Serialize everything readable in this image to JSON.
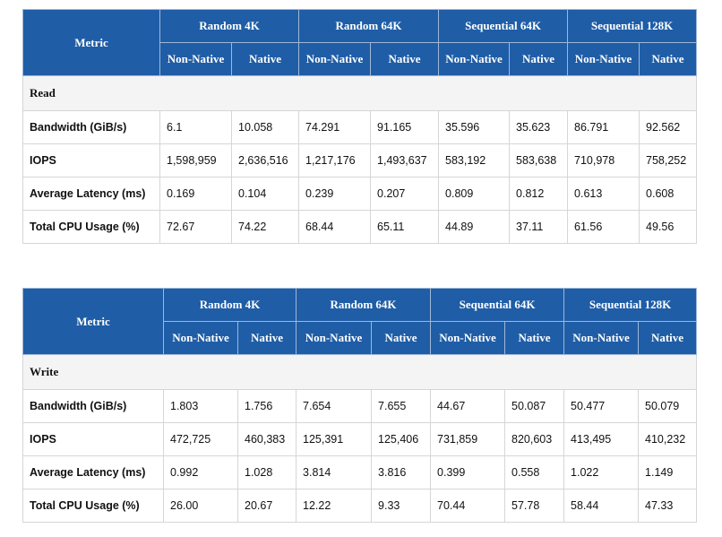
{
  "tables": [
    {
      "header": {
        "metric": "Metric",
        "groups": [
          "Random 4K",
          "Random 64K",
          "Sequential 64K",
          "Sequential 128K"
        ],
        "subheaders": [
          "Non-Native",
          "Native",
          "Non-Native",
          "Native",
          "Non-Native",
          "Native",
          "Non-Native",
          "Native"
        ]
      },
      "section": "Read",
      "rows": [
        {
          "label": "Bandwidth (GiB/s)",
          "values": [
            "6.1",
            "10.058",
            "74.291",
            "91.165",
            "35.596",
            "35.623",
            "86.791",
            "92.562"
          ]
        },
        {
          "label": "IOPS",
          "values": [
            "1,598,959",
            "2,636,516",
            "1,217,176",
            "1,493,637",
            "583,192",
            "583,638",
            "710,978",
            "758,252"
          ]
        },
        {
          "label": "Average Latency (ms)",
          "values": [
            "0.169",
            "0.104",
            "0.239",
            "0.207",
            "0.809",
            "0.812",
            "0.613",
            "0.608"
          ]
        },
        {
          "label": "Total CPU Usage (%)",
          "values": [
            "72.67",
            "74.22",
            "68.44",
            "65.11",
            "44.89",
            "37.11",
            "61.56",
            "49.56"
          ]
        }
      ]
    },
    {
      "header": {
        "metric": "Metric",
        "groups": [
          "Random 4K",
          "Random 64K",
          "Sequential 64K",
          "Sequential 128K"
        ],
        "subheaders": [
          "Non-Native",
          "Native",
          "Non-Native",
          "Native",
          "Non-Native",
          "Native",
          "Non-Native",
          "Native"
        ]
      },
      "section": "Write",
      "rows": [
        {
          "label": "Bandwidth (GiB/s)",
          "values": [
            "1.803",
            "1.756",
            "7.654",
            "7.655",
            "44.67",
            "50.087",
            "50.477",
            "50.079"
          ]
        },
        {
          "label": "IOPS",
          "values": [
            "472,725",
            "460,383",
            "125,391",
            "125,406",
            "731,859",
            "820,603",
            "413,495",
            "410,232"
          ]
        },
        {
          "label": "Average Latency (ms)",
          "values": [
            "0.992",
            "1.028",
            "3.814",
            "3.816",
            "0.399",
            "0.558",
            "1.022",
            "1.149"
          ]
        },
        {
          "label": "Total CPU Usage (%)",
          "values": [
            "26.00",
            "20.67",
            "12.22",
            "9.33",
            "70.44",
            "57.78",
            "58.44",
            "47.33"
          ]
        }
      ]
    }
  ]
}
